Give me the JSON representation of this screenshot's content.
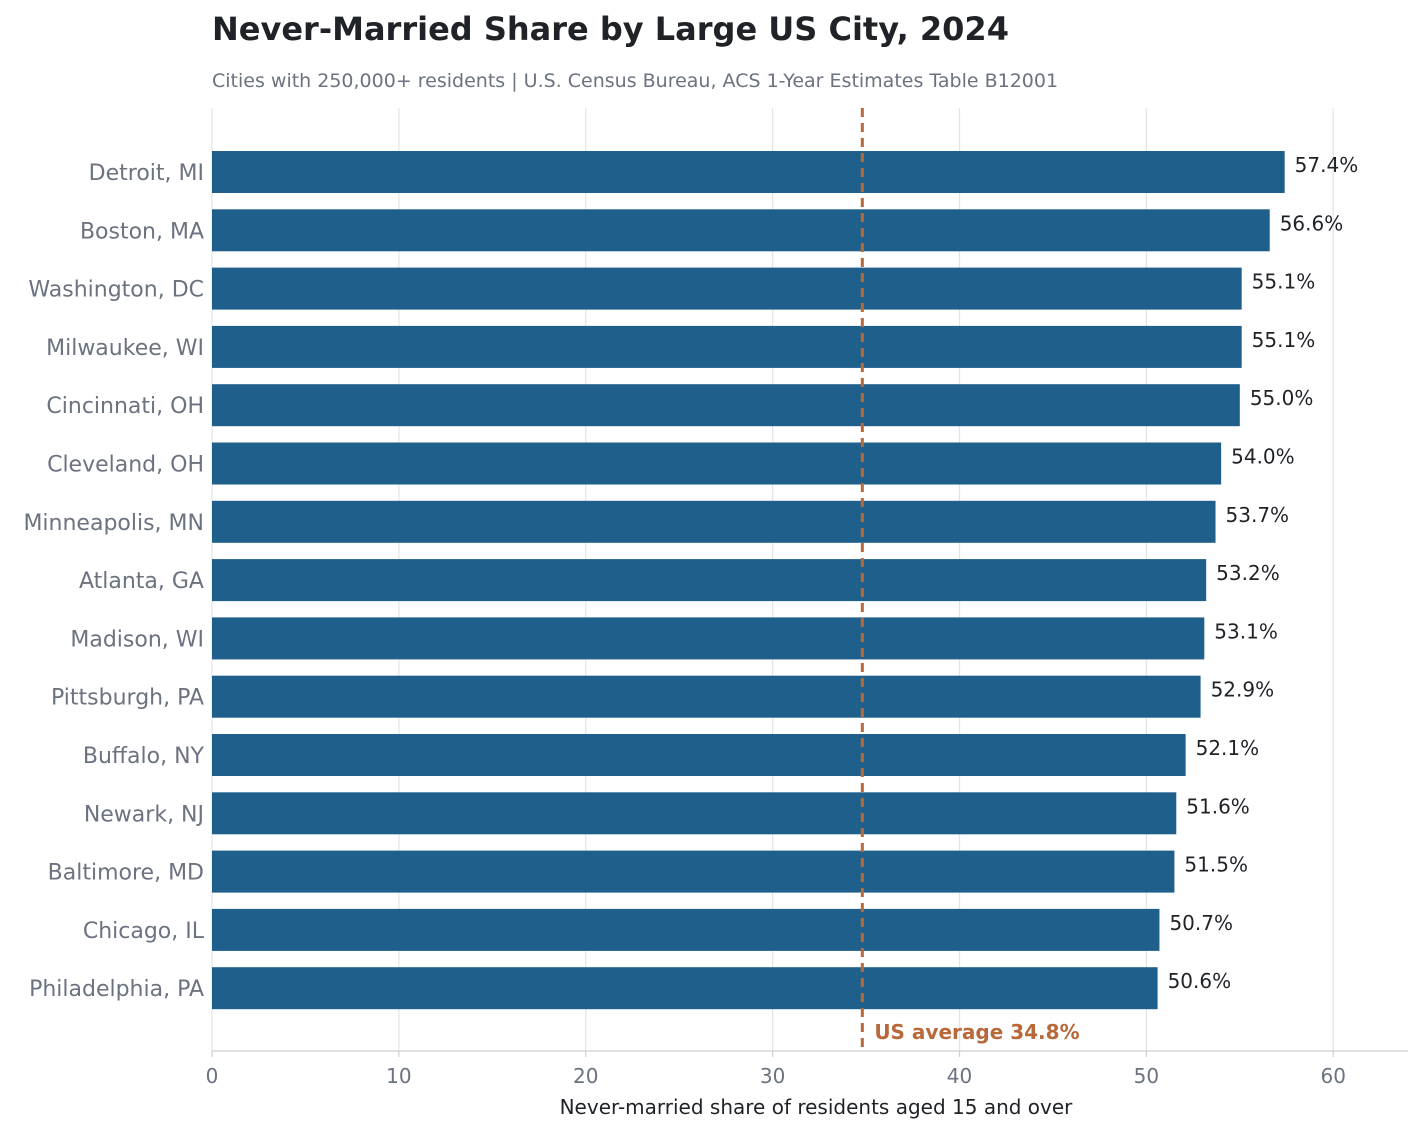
{
  "title": "Never-Married Share by Large US City, 2024",
  "subtitle": "Cities with 250,000+ residents  |  U.S. Census Bureau, ACS 1-Year Estimates Table B12001",
  "chart_data": {
    "type": "bar",
    "orientation": "horizontal",
    "title": "Never-Married Share by Large US City, 2024",
    "subtitle": "Cities with 250,000+ residents  |  U.S. Census Bureau, ACS 1-Year Estimates Table B12001",
    "xlabel": "Never-married share of residents aged 15 and over",
    "ylabel": "",
    "xlim": [
      0,
      64
    ],
    "xticks": [
      0,
      10,
      20,
      30,
      40,
      50,
      60
    ],
    "grid": "vertical",
    "bar_color": "#1f5f8b",
    "categories": [
      "Detroit, MI",
      "Boston, MA",
      "Washington, DC",
      "Milwaukee, WI",
      "Cincinnati, OH",
      "Cleveland, OH",
      "Minneapolis, MN",
      "Atlanta, GA",
      "Madison, WI",
      "Pittsburgh, PA",
      "Buffalo, NY",
      "Newark, NJ",
      "Baltimore, MD",
      "Chicago, IL",
      "Philadelphia, PA"
    ],
    "values": [
      57.4,
      56.6,
      55.1,
      55.1,
      55.0,
      54.0,
      53.7,
      53.2,
      53.1,
      52.9,
      52.1,
      51.6,
      51.5,
      50.7,
      50.6
    ],
    "value_labels": [
      "57.4%",
      "56.6%",
      "55.1%",
      "55.1%",
      "55.0%",
      "54.0%",
      "53.7%",
      "53.2%",
      "53.1%",
      "52.9%",
      "52.1%",
      "51.6%",
      "51.5%",
      "50.7%",
      "50.6%"
    ],
    "reference_line": {
      "value": 34.8,
      "label": "US average 34.8%",
      "color": "#b8693a",
      "style": "dashed"
    }
  }
}
